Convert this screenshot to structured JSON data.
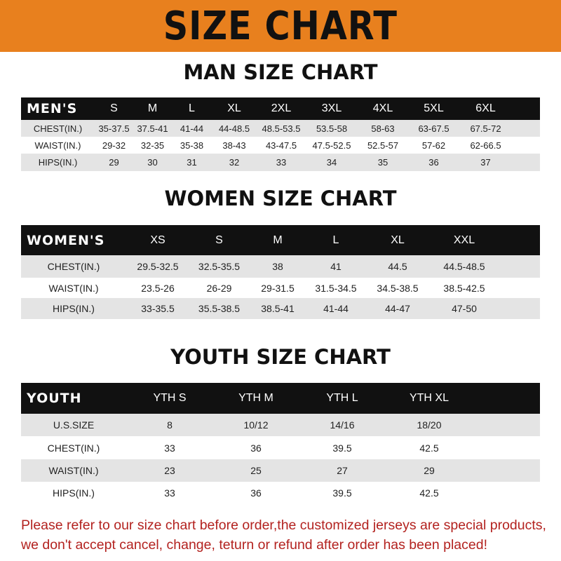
{
  "banner": {
    "title": "SIZE CHART",
    "color": "#e8801e"
  },
  "men": {
    "title": "MAN SIZE CHART",
    "header": [
      "MEN'S",
      "S",
      "M",
      "L",
      "XL",
      "2XL",
      "3XL",
      "4XL",
      "5XL",
      "6XL"
    ],
    "rows": [
      [
        "CHEST(IN.)",
        "35-37.5",
        "37.5-41",
        "41-44",
        "44-48.5",
        "48.5-53.5",
        "53.5-58",
        "58-63",
        "63-67.5",
        "67.5-72"
      ],
      [
        "WAIST(IN.)",
        "29-32",
        "32-35",
        "35-38",
        "38-43",
        "43-47.5",
        "47.5-52.5",
        "52.5-57",
        "57-62",
        "62-66.5"
      ],
      [
        "HIPS(IN.)",
        "29",
        "30",
        "31",
        "32",
        "33",
        "34",
        "35",
        "36",
        "37"
      ]
    ]
  },
  "women": {
    "title": "WOMEN SIZE CHART",
    "header": [
      "WOMEN'S",
      "XS",
      "S",
      "M",
      "L",
      "XL",
      "XXL"
    ],
    "rows": [
      [
        "CHEST(IN.)",
        "29.5-32.5",
        "32.5-35.5",
        "38",
        "41",
        "44.5",
        "44.5-48.5"
      ],
      [
        "WAIST(IN.)",
        "23.5-26",
        "26-29",
        "29-31.5",
        "31.5-34.5",
        "34.5-38.5",
        "38.5-42.5"
      ],
      [
        "HIPS(IN.)",
        "33-35.5",
        "35.5-38.5",
        "38.5-41",
        "41-44",
        "44-47",
        "47-50"
      ]
    ]
  },
  "youth": {
    "title": "YOUTH SIZE CHART",
    "header": [
      "YOUTH",
      "YTH S",
      "YTH M",
      "YTH L",
      "YTH XL"
    ],
    "rows": [
      [
        "U.S.SIZE",
        "8",
        "10/12",
        "14/16",
        "18/20"
      ],
      [
        "CHEST(IN.)",
        "33",
        "36",
        "39.5",
        "42.5"
      ],
      [
        "WAIST(IN.)",
        "23",
        "25",
        "27",
        "29"
      ],
      [
        "HIPS(IN.)",
        "33",
        "36",
        "39.5",
        "42.5"
      ]
    ]
  },
  "footer": {
    "line1": "Please refer to our size chart before order,the customized jerseys are special products,",
    "line2": "we don't accept cancel, change, teturn or refund after order has been placed!",
    "color": "#b3221f"
  }
}
